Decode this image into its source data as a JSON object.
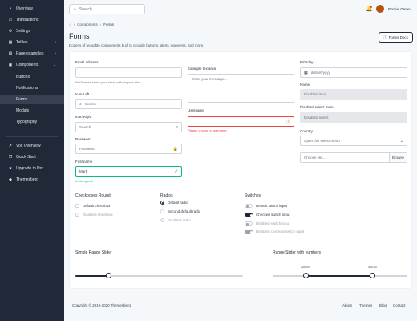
{
  "sidebar": {
    "items": [
      {
        "label": "Overview",
        "icon": "pie-chart-icon"
      },
      {
        "label": "Transactions",
        "icon": "credit-card-icon"
      },
      {
        "label": "Settings",
        "icon": "gear-icon"
      },
      {
        "label": "Tables",
        "icon": "table-icon"
      },
      {
        "label": "Page examples",
        "icon": "file-icon"
      },
      {
        "label": "Components",
        "icon": "grid-icon"
      }
    ],
    "sub_items": [
      "Buttons",
      "Notifications",
      "Forms",
      "Modals",
      "Typography"
    ],
    "bottom_items": [
      {
        "label": "Volt Overview",
        "icon": "rocket-icon"
      },
      {
        "label": "Quick Start",
        "icon": "book-icon"
      },
      {
        "label": "Upgrade to Pro",
        "icon": "star-icon"
      },
      {
        "label": "Themesberg",
        "icon": "logo-icon"
      }
    ]
  },
  "topbar": {
    "search_placeholder": "Search",
    "user_name": "Bonnie Green"
  },
  "breadcrumb": {
    "items": [
      "Components",
      "Forms"
    ]
  },
  "page": {
    "title": "Forms",
    "subtitle": "Dozens of reusable components built to provide buttons, alerts, popovers, and more.",
    "docs_button": "Forms Docs"
  },
  "form": {
    "email_label": "Email address",
    "email_help": "We'll never share your email with anyone else.",
    "icon_left_label": "Icon Left",
    "icon_left_placeholder": "Search",
    "icon_right_label": "Icon Right",
    "icon_right_placeholder": "Search",
    "password_label": "Password",
    "password_placeholder": "Password",
    "first_name_label": "First name",
    "first_name_value": "Mark",
    "first_name_ok": "Looks good!",
    "textarea_label": "Example textarea",
    "textarea_placeholder": "Enter your message...",
    "username_label": "Username",
    "username_error": "Please choose a username.",
    "birthday_label": "Birthday",
    "birthday_placeholder": "dd/mm/yyyy",
    "name_label": "Name",
    "name_value": "Disabled input",
    "disabled_select_label": "Disabled select menu",
    "disabled_select_value": "Disabled select",
    "country_label": "Country",
    "country_value": "Open this select menu",
    "file_placeholder": "Choose file...",
    "file_button": "Browse"
  },
  "checkboxes": {
    "title": "Checkboxes Round",
    "items": [
      "Default checkbox",
      "Disabled checkbox"
    ]
  },
  "radios": {
    "title": "Radios",
    "items": [
      "Default radio",
      "Second default radio",
      "Disabled radio"
    ]
  },
  "switches": {
    "title": "Switches",
    "items": [
      "Default switch input",
      "Checked switch input",
      "Disabled switch input",
      "Disabled checked switch input"
    ]
  },
  "sliders": {
    "simple_title": "Simple Range Slider",
    "simple_value": 0.2,
    "numbers_title": "Range Slider with numbers",
    "numbers_min": "200.00",
    "numbers_max": "400.00"
  },
  "footer": {
    "copyright": "Copyright © 2019-2020 Themesberg",
    "links": [
      "About",
      "Themes",
      "Blog",
      "Contact"
    ]
  }
}
